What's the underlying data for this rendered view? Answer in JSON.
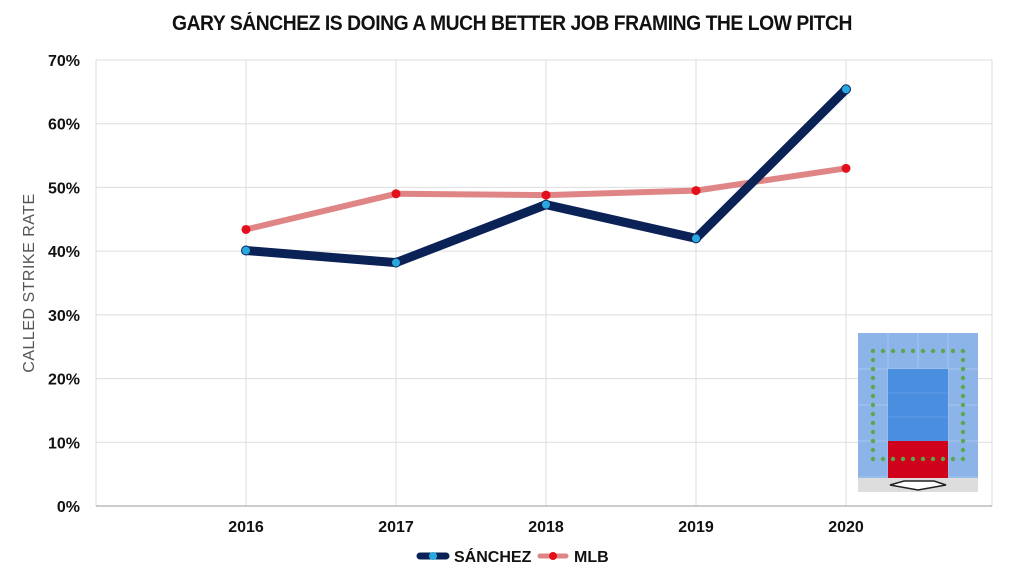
{
  "chart_data": {
    "type": "line",
    "title": "GARY SÁNCHEZ IS DOING A MUCH BETTER JOB FRAMING THE LOW PITCH",
    "xlabel": "",
    "ylabel": "CALLED STRIKE RATE",
    "categories": [
      "2016",
      "2017",
      "2018",
      "2019",
      "2020"
    ],
    "y_ticks": [
      "0%",
      "10%",
      "20%",
      "30%",
      "40%",
      "50%",
      "60%",
      "70%"
    ],
    "ylim": [
      0,
      70
    ],
    "grid": true,
    "legend_position": "bottom",
    "series": [
      {
        "name": "SÁNCHEZ",
        "values": [
          40.1,
          38.2,
          47.3,
          42.0,
          65.4
        ],
        "line_color": "#0b2257",
        "marker_color": "#29a8e0"
      },
      {
        "name": "MLB",
        "values": [
          43.4,
          49.0,
          48.8,
          49.5,
          53.0
        ],
        "line_color": "#e08585",
        "marker_color": "#e3101b"
      }
    ],
    "inset_strike_zone": {
      "outer_color": "#8db4e8",
      "inner_color": "#4a8ee0",
      "highlight_color": "#d0021b",
      "dots_color": "#5ca64f",
      "plate_area_color": "#dddddd"
    }
  }
}
